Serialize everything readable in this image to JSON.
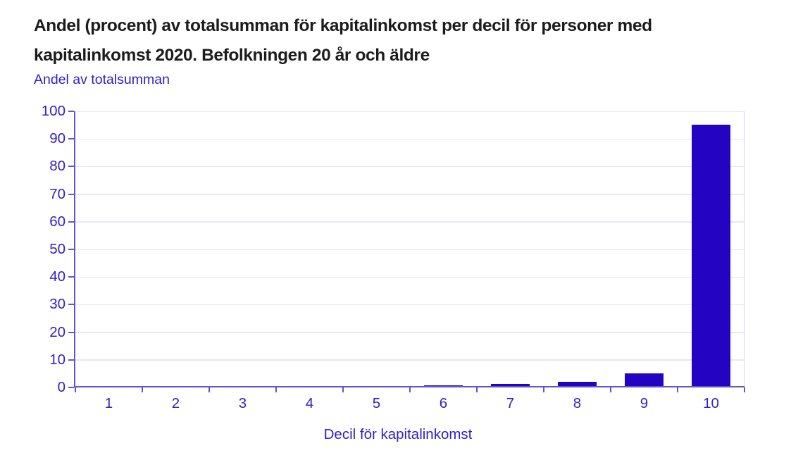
{
  "title": {
    "line1": "Andel (procent) av totalsumman för kapitalinkomst per decil för personer med",
    "line2": "kapitalinkomst 2020. Befolkningen 20 år och äldre"
  },
  "chart_data": {
    "type": "bar",
    "title": "Andel (procent) av totalsumman för kapitalinkomst per decil för personer med kapitalinkomst 2020. Befolkningen 20 år och äldre",
    "ylabel": "Andel av totalsumman",
    "xlabel": "Decil för kapitalinkomst",
    "categories": [
      "1",
      "2",
      "3",
      "4",
      "5",
      "6",
      "7",
      "8",
      "9",
      "10"
    ],
    "values": [
      0,
      0.1,
      0.1,
      0.1,
      0.3,
      0.5,
      0.9,
      1.8,
      4.8,
      95
    ],
    "ylim": [
      0,
      100
    ],
    "yticks": [
      0,
      10,
      20,
      30,
      40,
      50,
      60,
      70,
      80,
      90,
      100
    ],
    "grid": true,
    "legend": false,
    "colors": {
      "bar": "#2503c3",
      "axis": "#6355ce",
      "grid": "#e9e6f7",
      "label": "#2f1fc8",
      "title": "#1c1c1c"
    }
  }
}
